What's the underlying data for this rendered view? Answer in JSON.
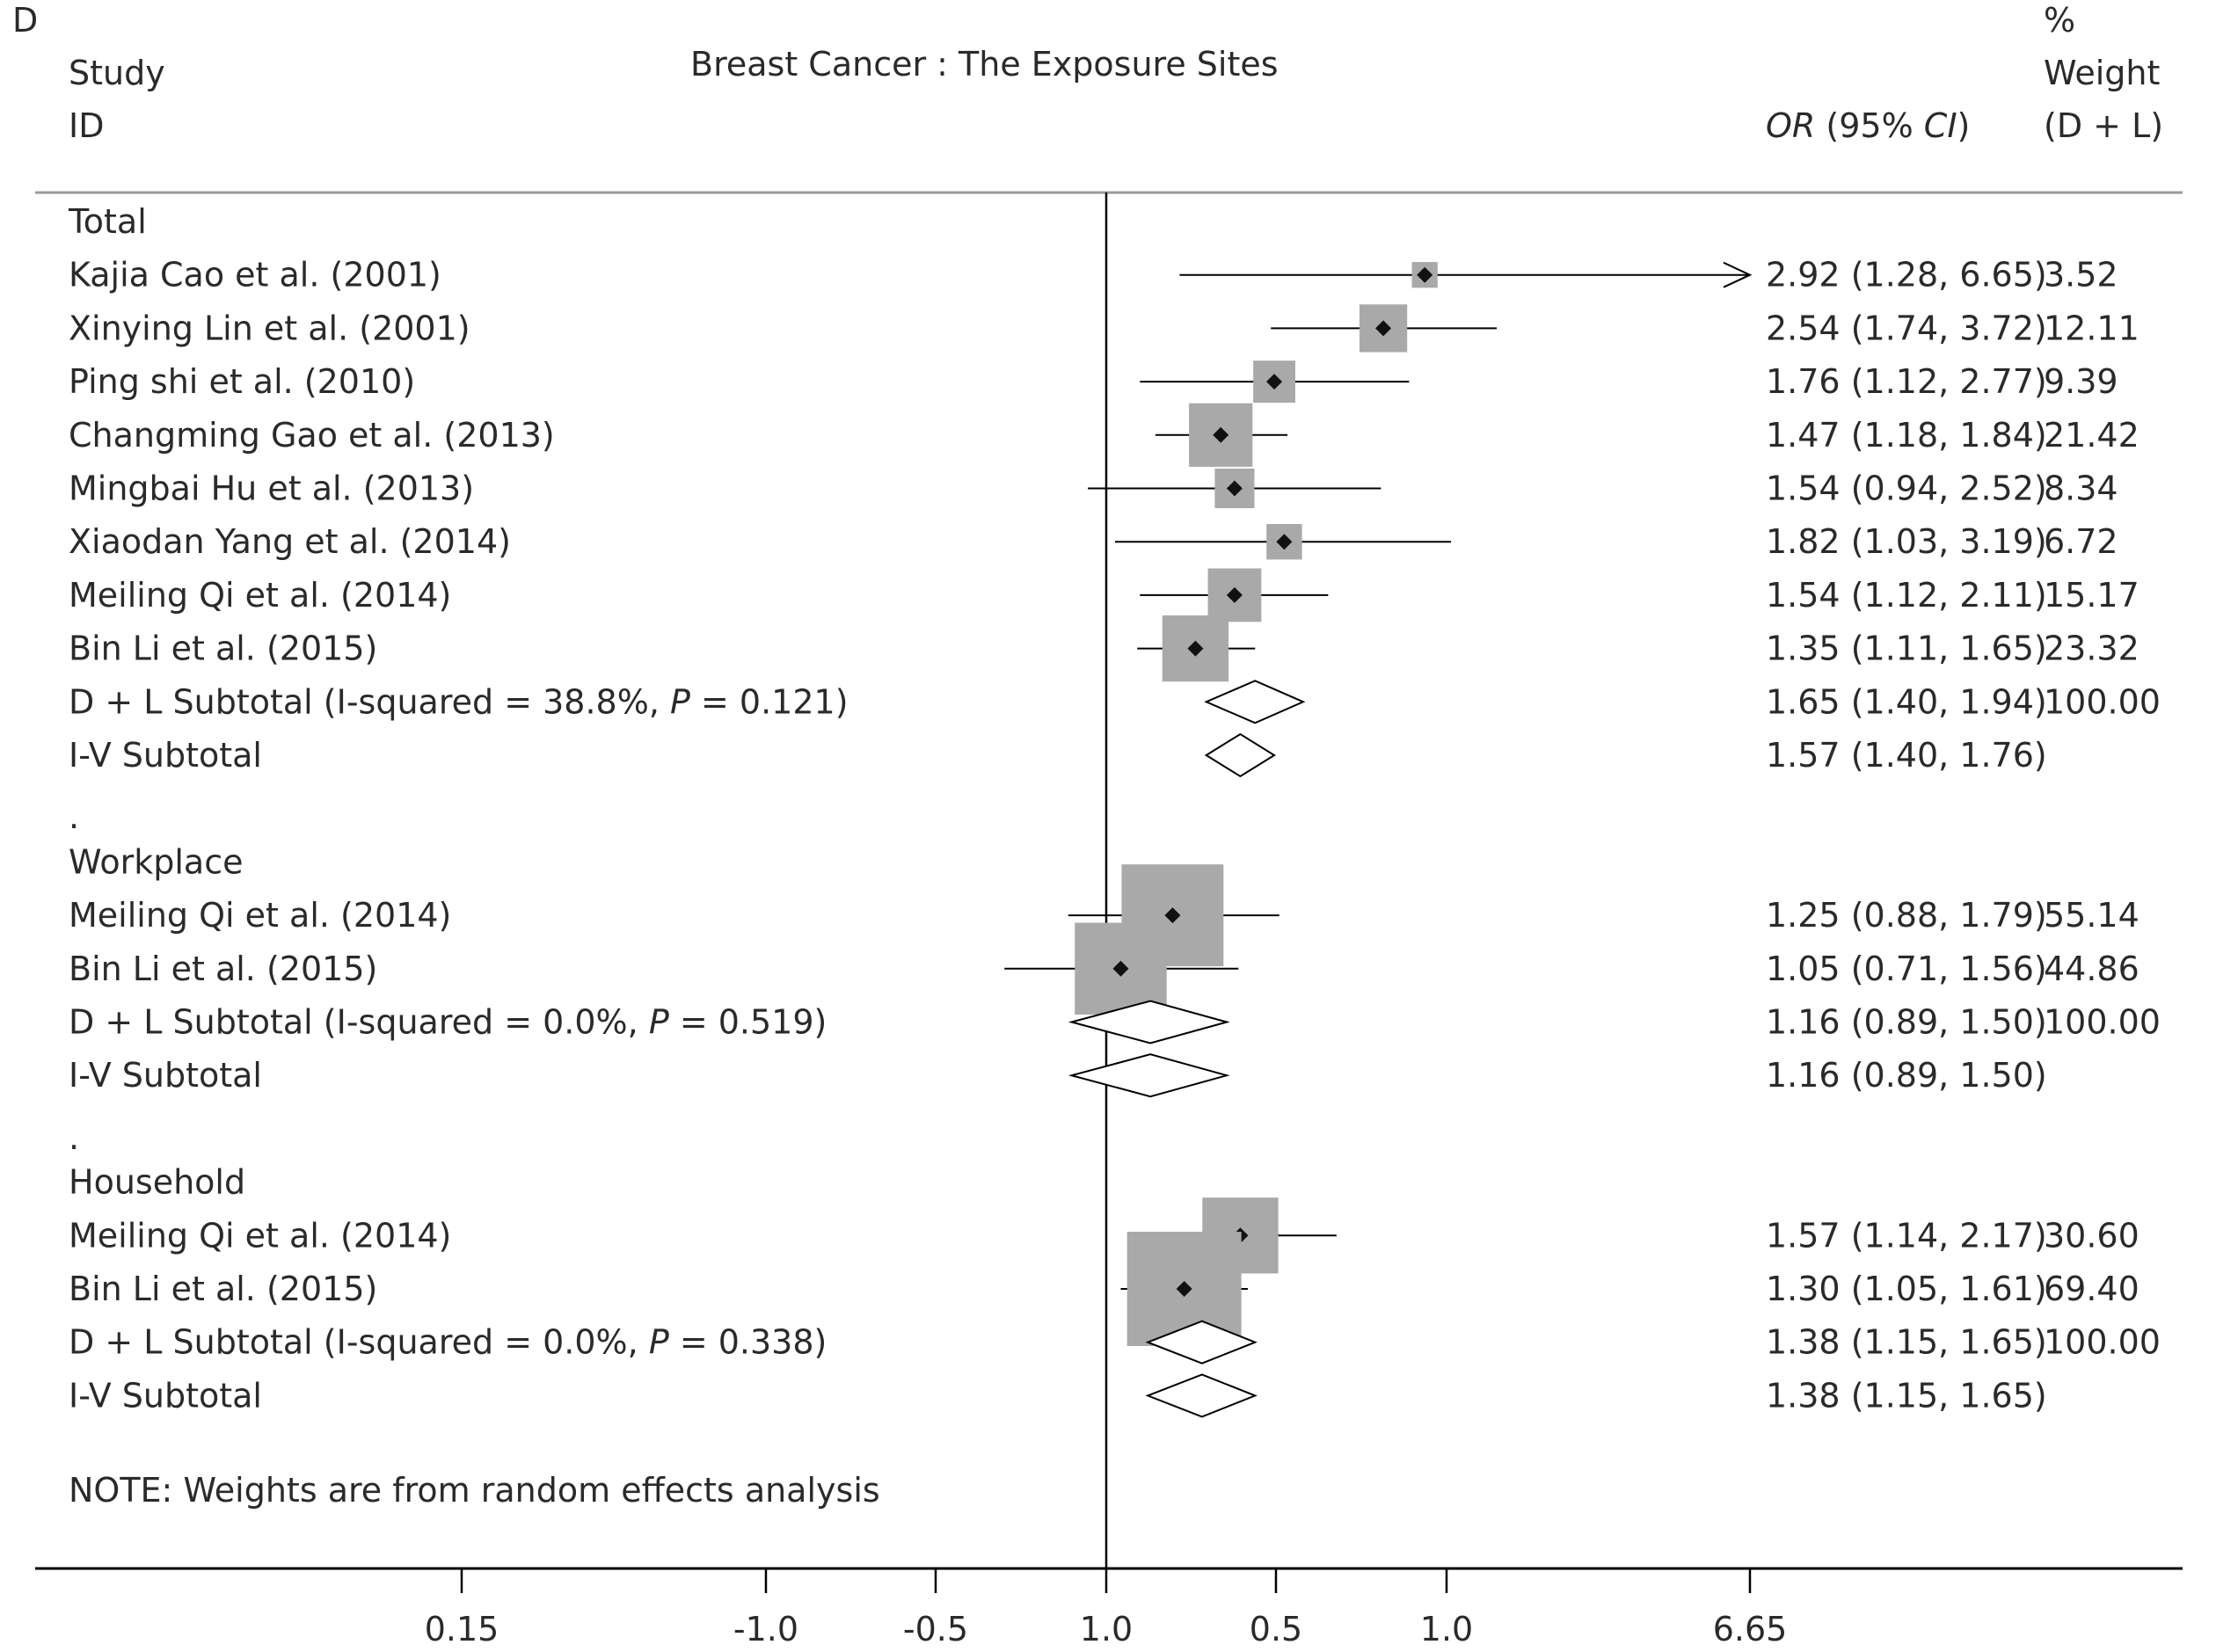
{
  "panel_label": "D",
  "header": {
    "col_study_line1": "Study",
    "col_study_line2": "ID",
    "title": "Breast Cancer : The Exposure Sites",
    "col_or_italic": "OR",
    "col_or_rest": " (95% ",
    "col_or_ci": "CI",
    "col_or_close": ")",
    "col_weight_line1": "%",
    "col_weight_line2": "Weight",
    "col_weight_line3": "(D + L)"
  },
  "note": "NOTE: Weights are from random effects analysis",
  "chart_data": {
    "type": "forest",
    "title": "Breast Cancer : The Exposure Sites",
    "xaxis_tick_labels": [
      "0.15",
      "-1.0",
      "-0.5",
      "1.0",
      "0.5",
      "1.0",
      "6.65"
    ],
    "reference_line": 1.0,
    "colors": {
      "box": "#a9a9a9",
      "line": "#000000",
      "diamond_stroke": "#000000",
      "text": "#2a2a2a"
    },
    "groups": [
      {
        "name": "Total",
        "studies": [
          {
            "label": "Kajia Cao et al. (2001)",
            "or": 2.92,
            "lo": 1.28,
            "hi": 6.65,
            "text": "2.92 (1.28, 6.65)",
            "weight": "3.52",
            "arrow_right": true
          },
          {
            "label": "Xinying Lin et al. (2001)",
            "or": 2.54,
            "lo": 1.74,
            "hi": 3.72,
            "text": "2.54 (1.74, 3.72)",
            "weight": "12.11"
          },
          {
            "label": "Ping shi et al. (2010)",
            "or": 1.76,
            "lo": 1.12,
            "hi": 2.77,
            "text": "1.76 (1.12, 2.77)",
            "weight": "9.39"
          },
          {
            "label": "Changming Gao et al. (2013)",
            "or": 1.47,
            "lo": 1.18,
            "hi": 1.84,
            "text": "1.47 (1.18, 1.84)",
            "weight": "21.42"
          },
          {
            "label": "Mingbai Hu et al. (2013)",
            "or": 1.54,
            "lo": 0.94,
            "hi": 2.52,
            "text": "1.54 (0.94, 2.52)",
            "weight": "8.34"
          },
          {
            "label": "Xiaodan Yang et al. (2014)",
            "or": 1.82,
            "lo": 1.03,
            "hi": 3.19,
            "text": "1.82 (1.03, 3.19)",
            "weight": "6.72"
          },
          {
            "label": "Meiling Qi et al. (2014)",
            "or": 1.54,
            "lo": 1.12,
            "hi": 2.11,
            "text": "1.54 (1.12, 2.11)",
            "weight": "15.17"
          },
          {
            "label": "Bin Li et al. (2015)",
            "or": 1.35,
            "lo": 1.11,
            "hi": 1.65,
            "text": "1.35 (1.11, 1.65)",
            "weight": "23.32"
          }
        ],
        "subtotals": [
          {
            "label_pre": "D + L Subtotal  (I-squared = 38.8%, ",
            "label_p": "P",
            "label_post": " = 0.121)",
            "or": 1.65,
            "lo": 1.4,
            "hi": 1.94,
            "text": "1.65 (1.40, 1.94)",
            "weight": "100.00"
          },
          {
            "label_pre": "I-V Subtotal",
            "label_p": "",
            "label_post": "",
            "or": 1.57,
            "lo": 1.4,
            "hi": 1.76,
            "text": "1.57 (1.40, 1.76)",
            "weight": ""
          }
        ]
      },
      {
        "name": "Workplace",
        "studies": [
          {
            "label": "Meiling Qi et al. (2014)",
            "or": 1.25,
            "lo": 0.88,
            "hi": 1.79,
            "text": "1.25 (0.88, 1.79)",
            "weight": "55.14"
          },
          {
            "label": "Bin Li et al. (2015)",
            "or": 1.05,
            "lo": 0.71,
            "hi": 1.56,
            "text": "1.05 (0.71, 1.56)",
            "weight": "44.86"
          }
        ],
        "subtotals": [
          {
            "label_pre": "D + L Subtotal  (I-squared = 0.0%, ",
            "label_p": "P",
            "label_post": " = 0.519)",
            "or": 1.16,
            "lo": 0.89,
            "hi": 1.5,
            "text": "1.16 (0.89, 1.50)",
            "weight": "100.00"
          },
          {
            "label_pre": "I-V Subtotal",
            "label_p": "",
            "label_post": "",
            "or": 1.16,
            "lo": 0.89,
            "hi": 1.5,
            "text": "1.16 (0.89, 1.50)",
            "weight": ""
          }
        ]
      },
      {
        "name": "Household",
        "studies": [
          {
            "label": "Meiling Qi et al. (2014)",
            "or": 1.57,
            "lo": 1.14,
            "hi": 2.17,
            "text": "1.57 (1.14, 2.17)",
            "weight": "30.60"
          },
          {
            "label": "Bin Li et al. (2015)",
            "or": 1.3,
            "lo": 1.05,
            "hi": 1.61,
            "text": "1.30 (1.05, 1.61)",
            "weight": "69.40"
          }
        ],
        "subtotals": [
          {
            "label_pre": "D + L Subtotal  (I-squared = 0.0%, ",
            "label_p": "P",
            "label_post": " = 0.338)",
            "or": 1.38,
            "lo": 1.15,
            "hi": 1.65,
            "text": "1.38 (1.15, 1.65)",
            "weight": "100.00"
          },
          {
            "label_pre": "I-V Subtotal",
            "label_p": "",
            "label_post": "",
            "or": 1.38,
            "lo": 1.15,
            "hi": 1.65,
            "text": "1.38 (1.15, 1.65)",
            "weight": ""
          }
        ]
      }
    ]
  }
}
